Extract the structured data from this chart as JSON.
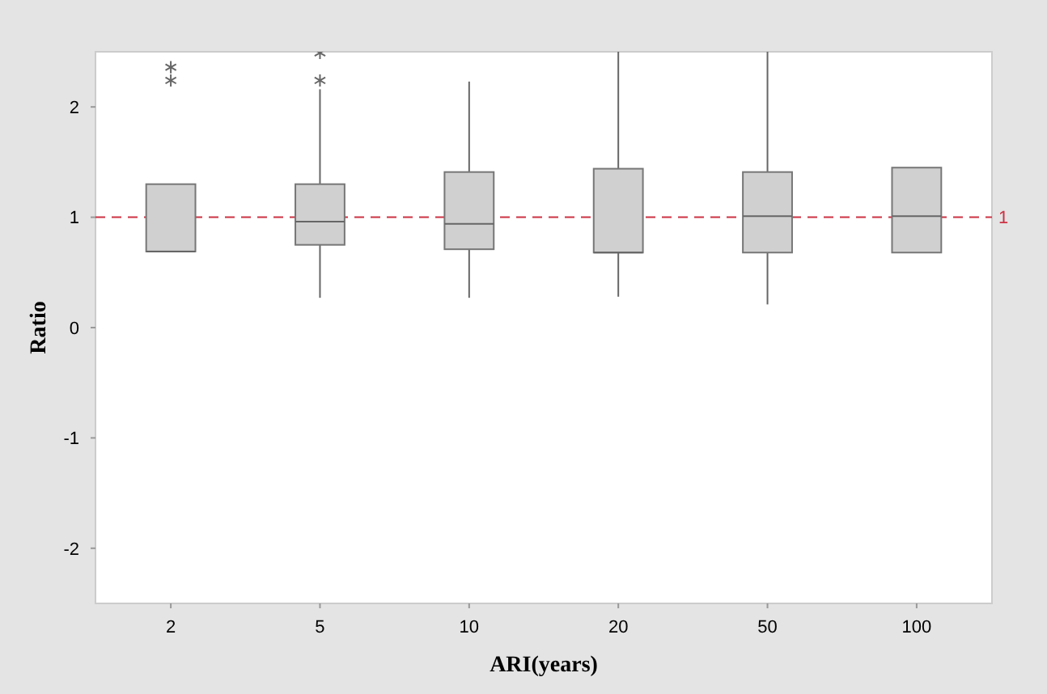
{
  "chart_data": {
    "type": "box",
    "xlabel": "ARI(years)",
    "ylabel": "Ratio",
    "categories": [
      "2",
      "5",
      "10",
      "20",
      "50",
      "100"
    ],
    "boxes": [
      {
        "low": 0.69,
        "q1": 0.69,
        "median": 0.69,
        "q3": 1.3,
        "high": 1.3,
        "outliers": [
          2.36,
          2.24
        ]
      },
      {
        "low": 0.27,
        "q1": 0.75,
        "median": 0.96,
        "q3": 1.3,
        "high": 2.16,
        "outliers": [
          2.24,
          2.49
        ]
      },
      {
        "low": 0.27,
        "q1": 0.71,
        "median": 0.94,
        "q3": 1.41,
        "high": 2.23
      },
      {
        "low": 0.28,
        "q1": 0.68,
        "median": 0.68,
        "q3": 1.44,
        "high": 2.5
      },
      {
        "low": 0.21,
        "q1": 0.68,
        "median": 1.01,
        "q3": 1.41,
        "high": 2.5
      },
      {
        "low": 0.68,
        "q1": 0.68,
        "median": 1.01,
        "q3": 1.45,
        "high": 1.45
      }
    ],
    "color": "#d0d0d0",
    "ylim": [
      -2.5,
      2.5
    ],
    "yticks": [
      -2,
      -1,
      0,
      1,
      2
    ],
    "marker": "star",
    "ref_lines": [
      {
        "axis": "y",
        "value": 1,
        "label": "1",
        "color": "#cc3344",
        "line_style": "dashed"
      }
    ]
  }
}
